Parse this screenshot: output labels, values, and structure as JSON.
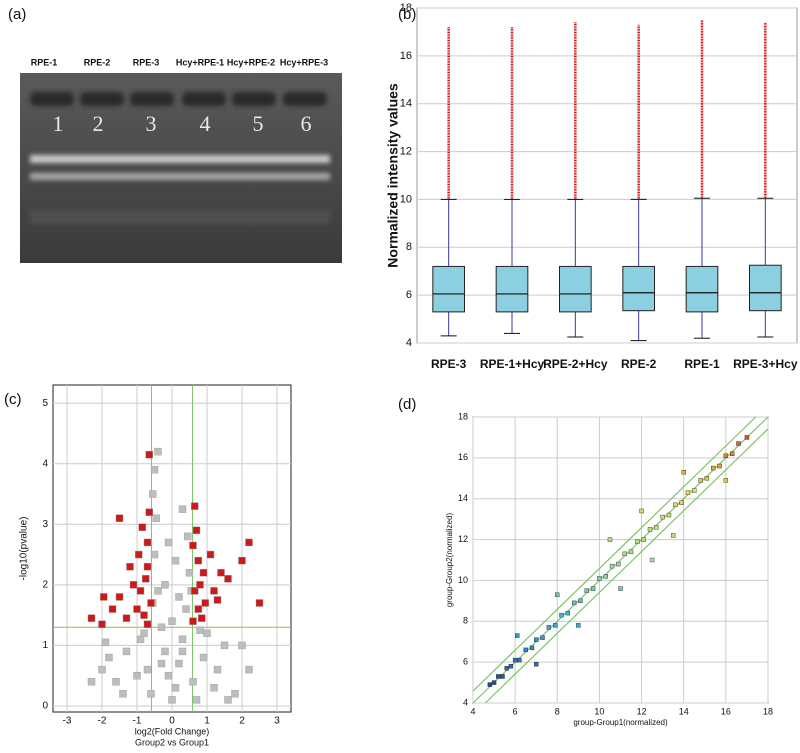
{
  "gel": {
    "panel": "(a)",
    "lanes": [
      "RPE-1",
      "RPE-2",
      "RPE-3",
      "Hcy+RPE-1",
      "Hcy+RPE-2",
      "Hcy+RPE-3"
    ],
    "numbers": [
      "1",
      "2",
      "3",
      "4",
      "5",
      "6"
    ]
  },
  "chart_data": [
    {
      "type": "box",
      "panel": "(b)",
      "ylabel": "Normalized intensity values",
      "categories": [
        "RPE-3",
        "RPE-1+Hcy",
        "RPE-2+Hcy",
        "RPE-2",
        "RPE-1",
        "RPE-3+Hcy"
      ],
      "whisker_low": [
        4.3,
        4.4,
        4.25,
        4.1,
        4.2,
        4.25
      ],
      "q1": [
        5.3,
        5.3,
        5.3,
        5.35,
        5.3,
        5.35
      ],
      "median": [
        6.05,
        6.05,
        6.05,
        6.1,
        6.1,
        6.1
      ],
      "q3": [
        7.2,
        7.2,
        7.2,
        7.2,
        7.2,
        7.25
      ],
      "whisker_high": [
        10.0,
        10.0,
        10.0,
        10.0,
        10.05,
        10.05
      ],
      "outlier_max": [
        17.2,
        17.2,
        17.4,
        17.3,
        17.5,
        17.4
      ],
      "box_color": "#8ccfe0",
      "line_color": "#3a3aa0",
      "outlier_color": "#d01010",
      "ylim": [
        4,
        18
      ],
      "yticks": [
        4,
        6,
        8,
        10,
        12,
        14,
        16,
        18
      ],
      "grid": true
    },
    {
      "type": "scatter",
      "panel": "(c)",
      "ylabel": "-log10(pvalue)",
      "xlabel": "log2(Fold Change)",
      "xlabel2": "Group2 vs Group1",
      "xlim": [
        -3.4,
        3.4
      ],
      "xticks": [
        -3,
        -2,
        -1,
        0,
        1,
        2,
        3
      ],
      "ylim": [
        -0.1,
        5.3
      ],
      "yticks": [
        0,
        1,
        2,
        3,
        4,
        5
      ],
      "grid": true,
      "thresholds_x": [
        -0.585,
        0.585
      ],
      "threshold_y": 1.3,
      "threshold_color": "#7dc36a",
      "series": [
        {
          "color": "#bdbdbd",
          "x": [
            0,
            0.1,
            -0.1,
            0.2,
            -0.2,
            0.3,
            -0.3,
            0.4,
            -0.4,
            0.5,
            -0.5,
            0.45,
            -0.45,
            0.3,
            -0.55,
            -0.5,
            -0.4,
            0.6,
            -0.7,
            0.9,
            -1.0,
            1.2,
            -1.3,
            1.5,
            -1.6,
            1.8,
            -1.8,
            -2.0,
            -2.3,
            2.2,
            1.0,
            -0.9,
            0.7,
            -0.6,
            0.2,
            -0.2,
            0.1,
            -0.1,
            0.3,
            -0.3,
            1.3,
            -1.4,
            0.8,
            -0.8,
            0.55,
            -0.55,
            0,
            2.0,
            -1.9,
            1.6
          ],
          "values": [
            0.1,
            0.3,
            0.5,
            0.7,
            0.9,
            1.1,
            1.3,
            1.6,
            1.9,
            2.2,
            2.5,
            2.8,
            3.1,
            3.25,
            3.5,
            3.9,
            4.2,
            0.4,
            0.6,
            0.8,
            0.5,
            0.3,
            0.9,
            1.0,
            0.4,
            0.2,
            0.8,
            0.6,
            0.4,
            0.6,
            1.2,
            1.1,
            0.1,
            0.2,
            1.8,
            2.0,
            2.4,
            2.7,
            0.9,
            0.7,
            0.6,
            0.2,
            1.25,
            1.2,
            1.9,
            1.7,
            1.4,
            1.0,
            1.05,
            0.1
          ]
        },
        {
          "color": "#cc1a1a",
          "x": [
            -2.3,
            -2.0,
            -1.95,
            -1.7,
            -1.5,
            -1.5,
            -1.3,
            -1.2,
            -1.1,
            -1.0,
            -0.95,
            -0.9,
            -0.85,
            -0.8,
            -0.75,
            -0.7,
            -0.7,
            -0.65,
            -0.65,
            -0.6,
            -0.7,
            0.6,
            0.65,
            0.65,
            0.7,
            0.75,
            0.75,
            0.8,
            0.85,
            0.9,
            0.95,
            1.1,
            1.2,
            1.3,
            1.4,
            1.6,
            2.0,
            2.2,
            2.5,
            0.6
          ],
          "values": [
            1.45,
            1.35,
            1.8,
            1.6,
            1.8,
            3.1,
            1.45,
            2.3,
            2.0,
            1.6,
            2.5,
            1.9,
            2.95,
            1.5,
            2.1,
            2.7,
            1.35,
            3.2,
            4.15,
            1.7,
            2.3,
            1.4,
            1.9,
            3.3,
            2.9,
            2.4,
            1.6,
            2.0,
            1.45,
            2.2,
            1.7,
            2.5,
            1.9,
            1.75,
            2.2,
            2.1,
            2.4,
            2.7,
            1.7,
            2.65
          ]
        }
      ]
    },
    {
      "type": "scatter",
      "panel": "(d)",
      "ylabel": "group-Group2(normalized)",
      "xlabel": "group-Group1(normalized)",
      "xlim": [
        4,
        18
      ],
      "xticks": [
        4,
        6,
        8,
        10,
        12,
        14,
        16,
        18
      ],
      "ylim": [
        4,
        18
      ],
      "yticks": [
        4,
        6,
        8,
        10,
        12,
        14,
        16,
        18
      ],
      "grid": true,
      "diagonals": [
        -0.585,
        0,
        0.585
      ],
      "threshold_color": "#7dc36a",
      "colormap": [
        "#1a2a8a",
        "#3aa0d8",
        "#9fe0a0",
        "#e8e040",
        "#c02020"
      ],
      "series": [
        {
          "x": [
            4.8,
            5.0,
            5.2,
            5.4,
            5.6,
            5.8,
            6.0,
            6.2,
            6.5,
            6.8,
            7.0,
            7.3,
            7.6,
            7.9,
            8.2,
            8.5,
            8.8,
            9.1,
            9.4,
            9.7,
            10.0,
            10.3,
            10.6,
            10.9,
            11.2,
            11.5,
            11.8,
            12.1,
            12.4,
            12.7,
            13.0,
            13.3,
            13.6,
            13.9,
            14.2,
            14.5,
            14.8,
            15.1,
            15.4,
            15.7,
            16.0,
            16.3,
            16.6,
            17.0,
            6.1,
            7.0,
            8.0,
            9.0,
            10.5,
            11.0,
            12.0,
            12.5,
            14.0,
            13.5,
            16.0
          ],
          "values": [
            4.9,
            5.0,
            5.3,
            5.3,
            5.7,
            5.8,
            6.1,
            6.1,
            6.6,
            6.7,
            7.1,
            7.2,
            7.7,
            7.8,
            8.3,
            8.4,
            8.9,
            9.0,
            9.5,
            9.6,
            10.1,
            10.2,
            10.7,
            10.8,
            11.3,
            11.4,
            11.9,
            12.0,
            12.5,
            12.6,
            13.1,
            13.2,
            13.7,
            13.8,
            14.3,
            14.4,
            14.9,
            15.0,
            15.5,
            15.6,
            16.1,
            16.2,
            16.7,
            17.0,
            7.3,
            5.9,
            9.3,
            7.8,
            12.0,
            9.6,
            13.4,
            11.0,
            15.3,
            12.2,
            14.9
          ]
        }
      ]
    }
  ]
}
